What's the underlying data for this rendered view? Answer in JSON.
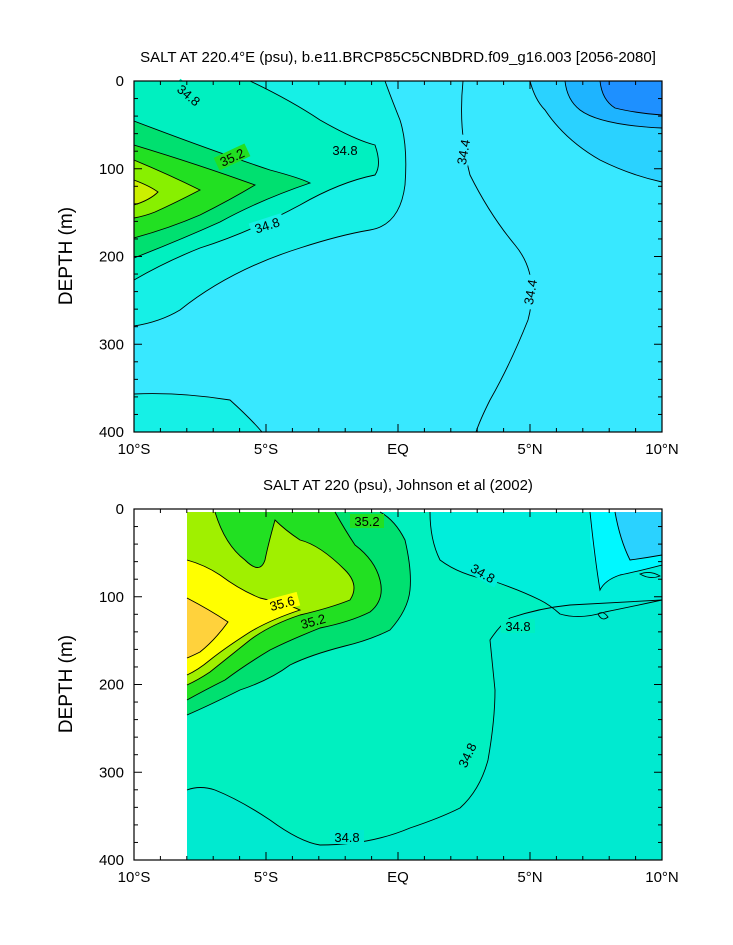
{
  "chart_data": [
    {
      "type": "contour",
      "title": "SALT AT 220.4°E (psu), b.e11.BRCP85C5CNBDRD.f09_g16.003 [2056-2080]",
      "ylabel": "DEPTH (m)",
      "xlabel": "",
      "xlim": [
        -10,
        10
      ],
      "ylim": [
        0,
        400
      ],
      "y_reversed": true,
      "x_tick_values": [
        -10,
        -5,
        0,
        5,
        10
      ],
      "x_tick_labels": [
        "10°S",
        "5°S",
        "EQ",
        "5°N",
        "10°N"
      ],
      "y_tick_values": [
        0,
        100,
        200,
        300,
        400
      ],
      "y_tick_labels": [
        "0",
        "100",
        "200",
        "300",
        "400"
      ],
      "data_x_range": [
        -10,
        10
      ],
      "fill_bands": [
        {
          "name": "<34.0",
          "color": "#1e90ff"
        },
        {
          "name": "34.0-34.2",
          "color": "#1eb4ff"
        },
        {
          "name": "34.2-34.4",
          "color": "#2ad2ff"
        },
        {
          "name": "34.4-34.6",
          "color": "#38e8ff"
        },
        {
          "name": "34.6-34.8",
          "color": "#16f0e6"
        },
        {
          "name": "34.8-35.0",
          "color": "#00f0c0"
        },
        {
          "name": "35.0-35.2",
          "color": "#00e070"
        },
        {
          "name": "35.2-35.4",
          "color": "#22e022"
        },
        {
          "name": "35.4-35.6",
          "color": "#88f000"
        }
      ],
      "contour_labels": [
        {
          "text": "34.8",
          "x": -8.6,
          "y": 17
        },
        {
          "text": "34.8",
          "x": -2.0,
          "y": 80
        },
        {
          "text": "35.2",
          "x": -7.4,
          "y": 85
        },
        {
          "text": "34.8",
          "x": -6.1,
          "y": 160
        },
        {
          "text": "34.4",
          "x": 2.6,
          "y": 80
        },
        {
          "text": "34.4",
          "x": 4.8,
          "y": 230
        }
      ]
    },
    {
      "type": "contour",
      "title": "SALT AT 220 (psu), Johnson et al (2002)",
      "ylabel": "DEPTH (m)",
      "xlabel": "",
      "xlim": [
        -10,
        10
      ],
      "ylim": [
        0,
        400
      ],
      "y_reversed": true,
      "x_tick_values": [
        -10,
        -5,
        0,
        5,
        10
      ],
      "x_tick_labels": [
        "10°S",
        "5°S",
        "EQ",
        "5°N",
        "10°N"
      ],
      "y_tick_values": [
        0,
        100,
        200,
        300,
        400
      ],
      "y_tick_labels": [
        "0",
        "100",
        "200",
        "300",
        "400"
      ],
      "data_x_range": [
        -8,
        10
      ],
      "fill_bands": [
        {
          "name": "34.2-34.4",
          "color": "#2ad2ff"
        },
        {
          "name": "34.4-34.6",
          "color": "#00f5f5"
        },
        {
          "name": "34.6-34.8",
          "color": "#00ead0"
        },
        {
          "name": "34.8-35.0",
          "color": "#00f0b0"
        },
        {
          "name": "35.0-35.2",
          "color": "#00e070"
        },
        {
          "name": "35.2-35.4",
          "color": "#22e022"
        },
        {
          "name": "35.4-35.6",
          "color": "#a0f000"
        },
        {
          "name": "35.6-35.8",
          "color": "#ffff00"
        },
        {
          "name": "35.8-36.0",
          "color": "#ffd23c"
        }
      ],
      "contour_labels": [
        {
          "text": "35.2",
          "x": -2.2,
          "y": 35
        },
        {
          "text": "34.8",
          "x": 3.2,
          "y": 70
        },
        {
          "text": "35.6",
          "x": -4.8,
          "y": 108
        },
        {
          "text": "35.2",
          "x": -3.5,
          "y": 137
        },
        {
          "text": "34.8",
          "x": 4.5,
          "y": 133
        },
        {
          "text": "34.8",
          "x": 2.5,
          "y": 285
        },
        {
          "text": "34.8",
          "x": -3.0,
          "y": 344
        }
      ]
    }
  ]
}
